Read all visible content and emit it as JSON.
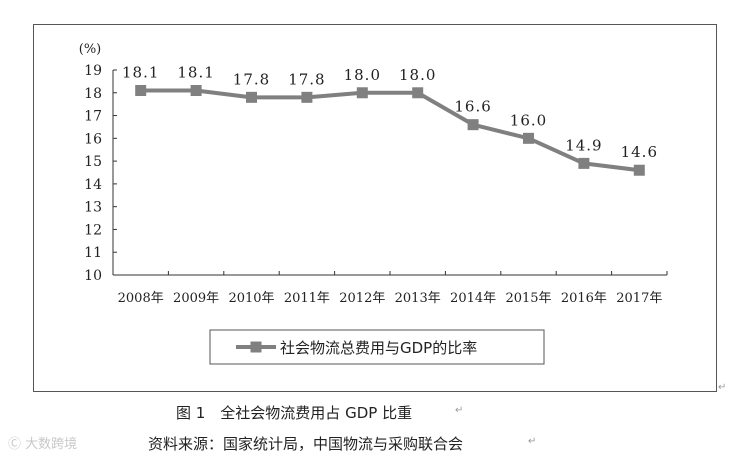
{
  "chart_data": {
    "type": "line",
    "categories": [
      "2008年",
      "2009年",
      "2010年",
      "2011年",
      "2012年",
      "2013年",
      "2014年",
      "2015年",
      "2016年",
      "2017年"
    ],
    "series": [
      {
        "name": "社会物流总费用与GDP的比率",
        "values": [
          18.1,
          18.1,
          17.8,
          17.8,
          18.0,
          18.0,
          16.6,
          16.0,
          14.9,
          14.6
        ],
        "data_labels": [
          "18.1",
          "18.1",
          "17.8",
          "17.8",
          "18.0",
          "18.0",
          "16.6",
          "16.0",
          "14.9",
          "14.6"
        ],
        "color": "#808080",
        "marker": "square"
      }
    ],
    "y_unit_label": "(%)",
    "ylim": [
      10,
      19
    ],
    "yticks": [
      10,
      11,
      12,
      13,
      14,
      15,
      16,
      17,
      18,
      19
    ],
    "grid": false,
    "legend_position": "bottom-center"
  },
  "caption": {
    "title": "图 1　全社会物流费用占 GDP 比重",
    "source": "资料来源：国家统计局，中国物流与采购联合会"
  },
  "watermark": "Ⓒ 大数跨境"
}
